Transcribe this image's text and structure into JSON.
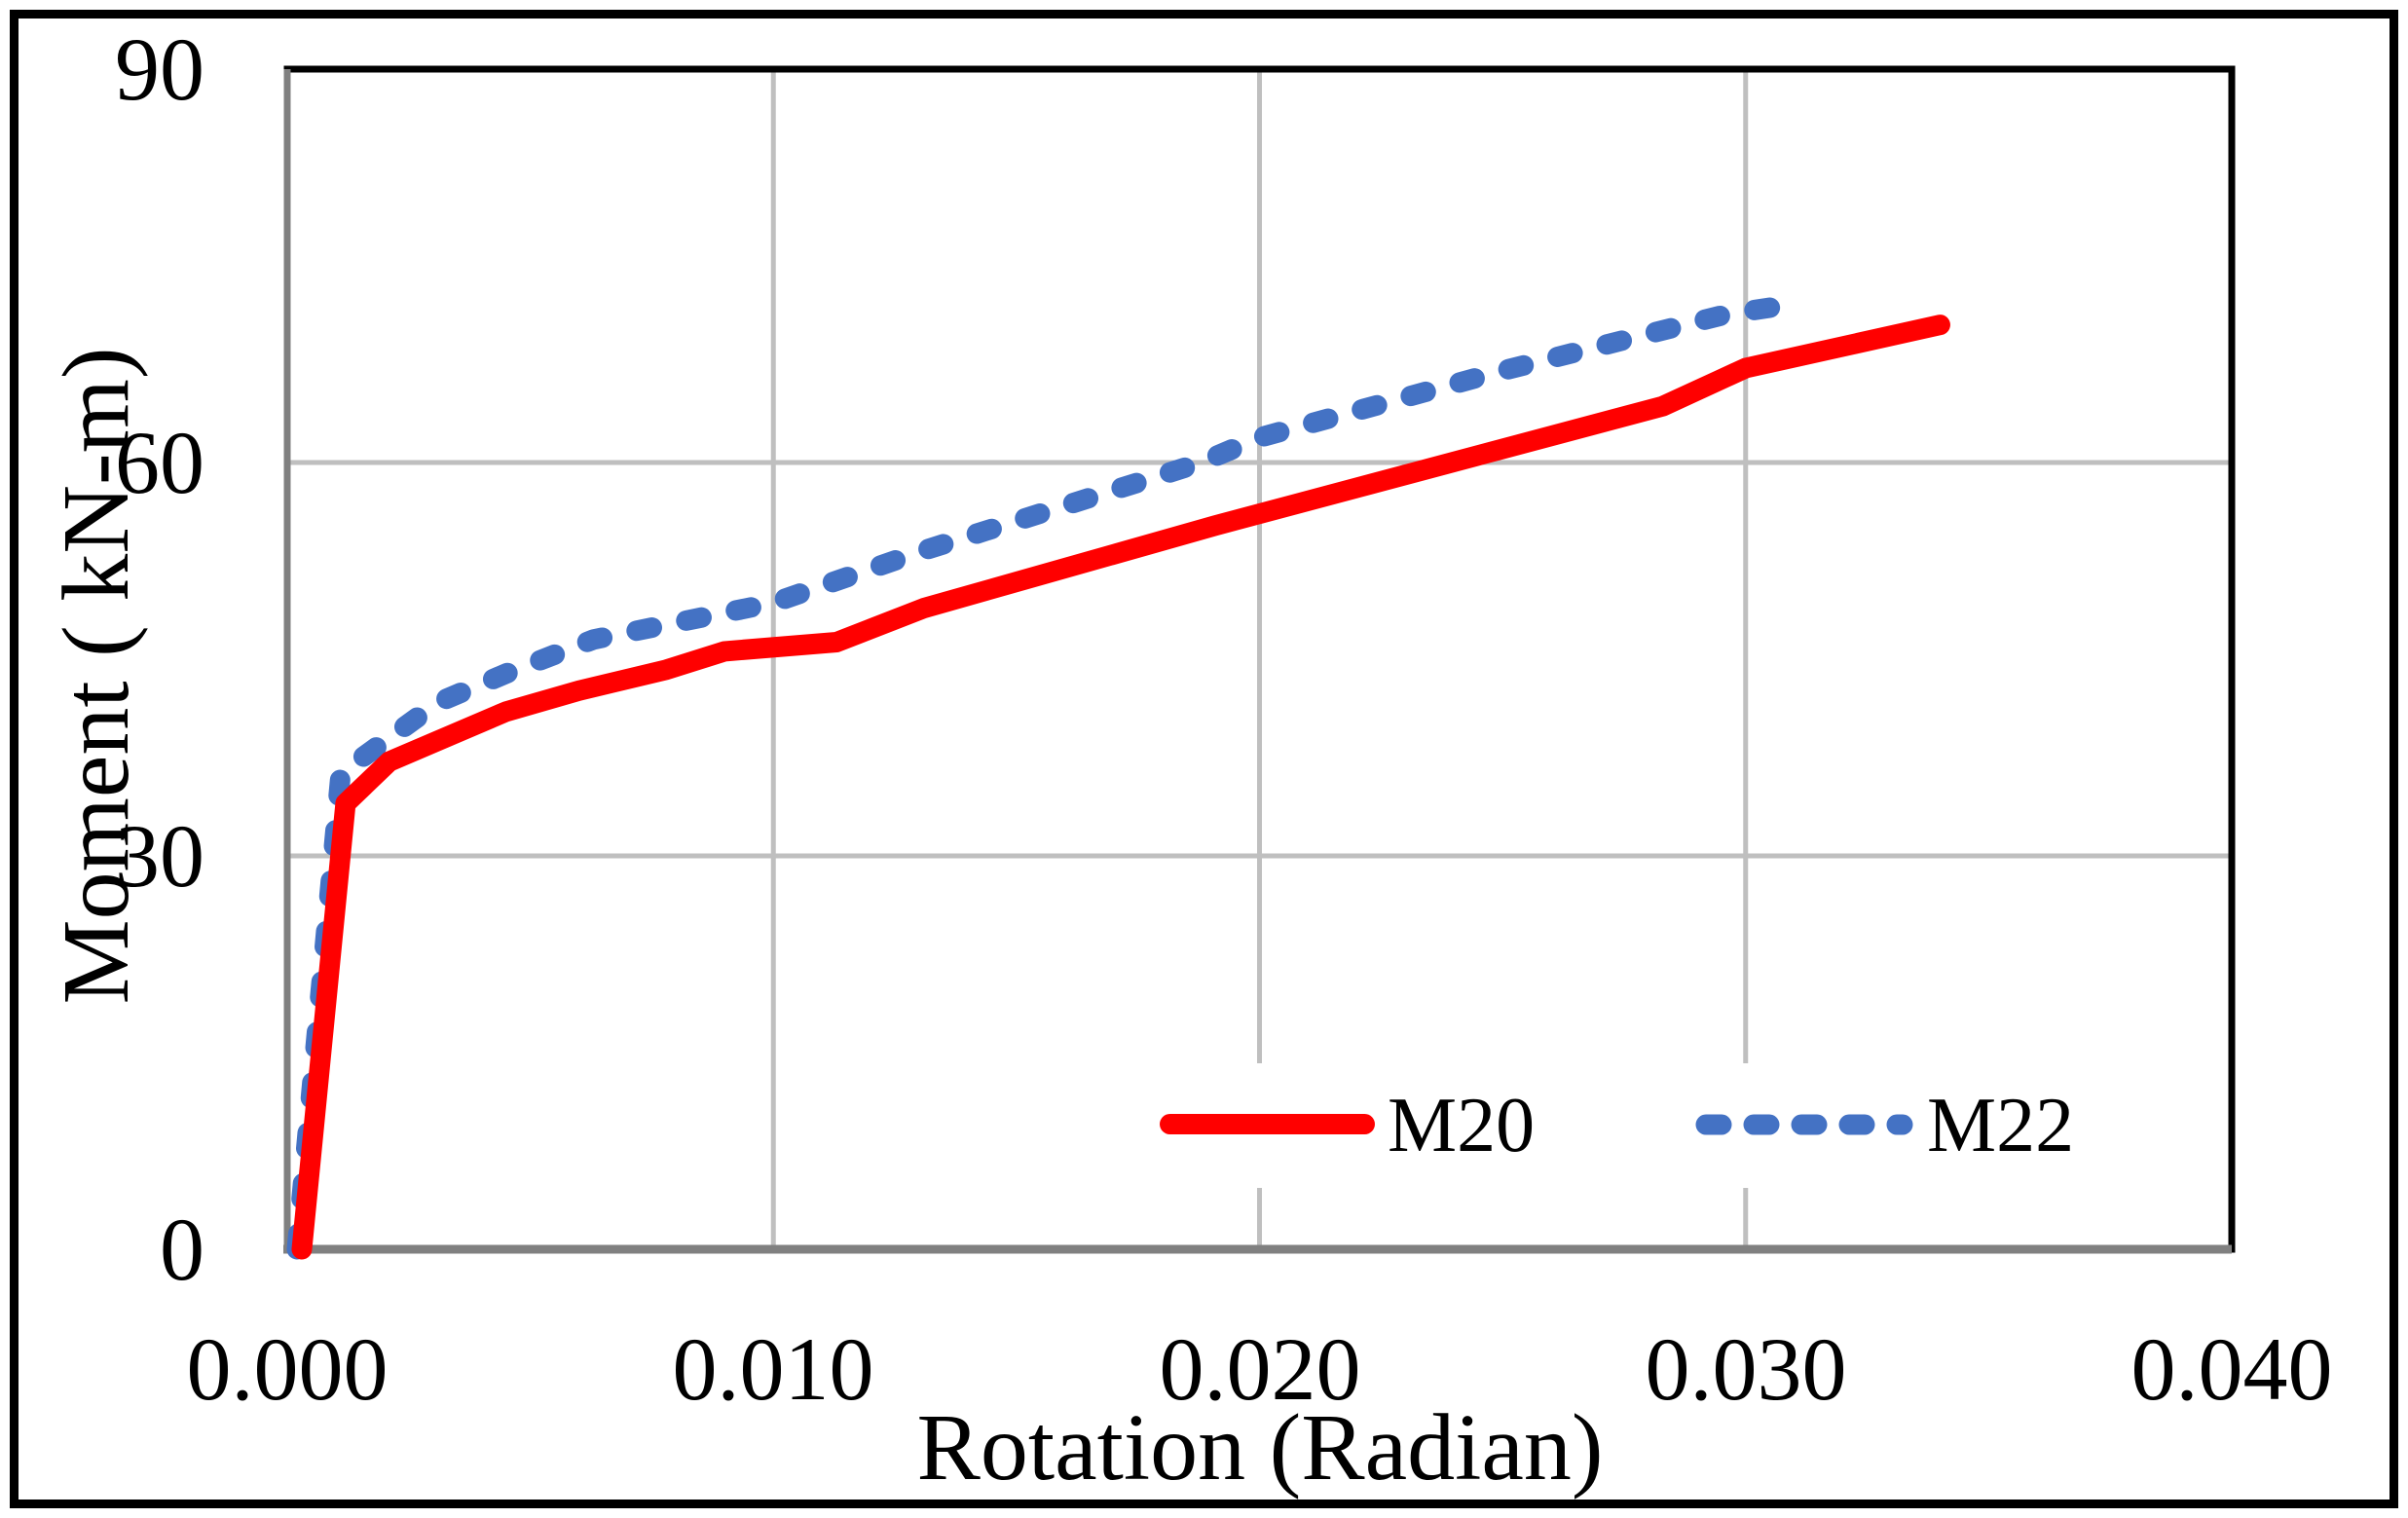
{
  "chart_data": {
    "type": "line",
    "title": "",
    "xlabel": "Rotation (Radian)",
    "ylabel": "Moment ( kN-m)",
    "xlim": [
      0,
      0.04
    ],
    "ylim": [
      0,
      90
    ],
    "x_ticks": [
      "0.000",
      "0.010",
      "0.020",
      "0.030",
      "0.040"
    ],
    "x_tick_values": [
      0.0,
      0.01,
      0.02,
      0.03,
      0.04
    ],
    "y_ticks": [
      "0",
      "30",
      "60",
      "90"
    ],
    "y_tick_values": [
      0,
      30,
      60,
      90
    ],
    "grid": true,
    "legend_position": "inside-bottom-right",
    "series": [
      {
        "name": "M20",
        "color": "#FF0000",
        "style": "solid",
        "points": [
          [
            0.0003,
            0
          ],
          [
            0.0012,
            34
          ],
          [
            0.0021,
            37.2
          ],
          [
            0.0045,
            41
          ],
          [
            0.006,
            42.6
          ],
          [
            0.0078,
            44.2
          ],
          [
            0.009,
            45.6
          ],
          [
            0.0113,
            46.3
          ],
          [
            0.0131,
            48.9
          ],
          [
            0.0191,
            55.2
          ],
          [
            0.0283,
            64.3
          ],
          [
            0.03,
            67.2
          ],
          [
            0.034,
            70.5
          ]
        ]
      },
      {
        "name": "M22",
        "color": "#4472C4",
        "style": "dashed",
        "points": [
          [
            0.0002,
            0
          ],
          [
            0.0011,
            36.3
          ],
          [
            0.0031,
            41.7
          ],
          [
            0.0045,
            43.9
          ],
          [
            0.0063,
            46.5
          ],
          [
            0.01,
            49.3
          ],
          [
            0.0131,
            53.3
          ],
          [
            0.0188,
            60.0
          ],
          [
            0.02,
            61.9
          ],
          [
            0.025,
            67.0
          ],
          [
            0.0296,
            71.3
          ],
          [
            0.0312,
            72.2
          ]
        ]
      }
    ]
  },
  "colors": {
    "series_m20": "#FF0000",
    "series_m22": "#4472C4",
    "gridline": "#BFBFBF",
    "axis_line": "#808080",
    "plot_border": "#000000",
    "figure_border": "#000000",
    "text": "#000000"
  },
  "legend": {
    "m20_label": "M20",
    "m22_label": "M22"
  }
}
